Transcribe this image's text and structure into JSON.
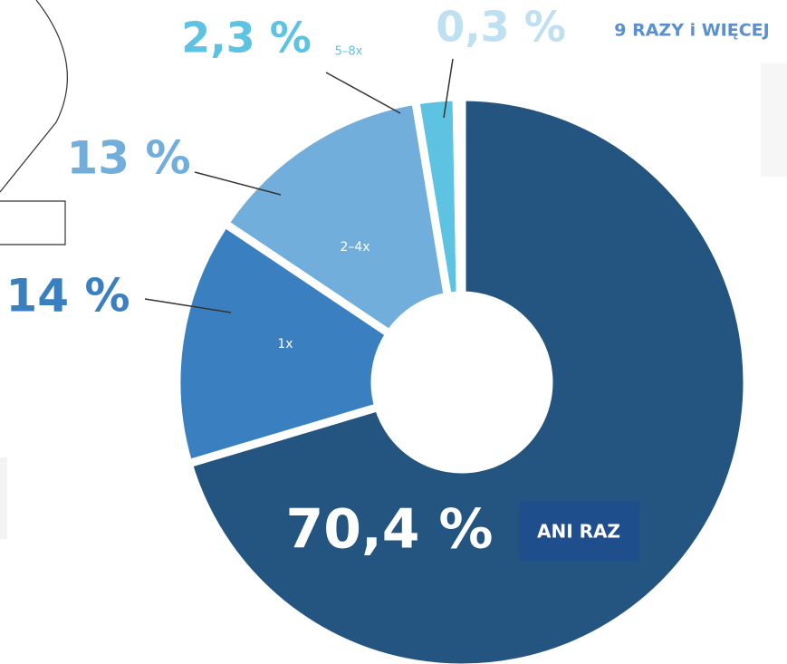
{
  "chart_data": {
    "type": "pie",
    "categories": [
      "ANI RAZ",
      "1x",
      "2–4x",
      "5–8x",
      "9 RAZY i WIĘCEJ"
    ],
    "values": [
      70.4,
      14,
      13,
      2.3,
      0.3
    ],
    "value_labels": [
      "70,4 %",
      "14 %",
      "13 %",
      "2,3 %",
      "0,3 %"
    ],
    "colors": [
      "#245580",
      "#3a80c0",
      "#72aedc",
      "#5ec2e2",
      "#bfe0f0"
    ]
  }
}
